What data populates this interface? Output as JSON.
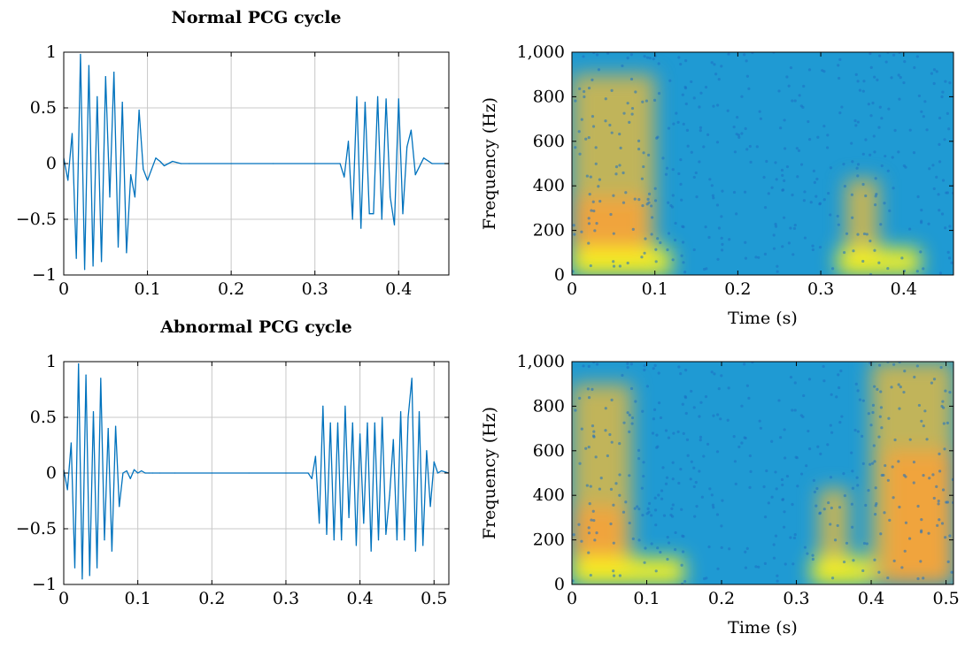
{
  "chart_data": [
    {
      "id": "normal-waveform",
      "type": "line",
      "title": "Normal PCG cycle",
      "xlabel": "",
      "ylabel": "",
      "xlim": [
        0,
        0.46
      ],
      "ylim": [
        -1,
        1
      ],
      "xticks": [
        0,
        0.1,
        0.2,
        0.3,
        0.4
      ],
      "xtick_labels": [
        "0",
        "0.1",
        "0.2",
        "0.3",
        "0.4"
      ],
      "yticks": [
        -1,
        -0.5,
        0,
        0.5,
        1
      ],
      "ytick_labels": [
        "−1",
        "−0.5",
        "0",
        "0.5",
        "1"
      ],
      "grid": true,
      "line_color": "#0072bd",
      "series": [
        {
          "x": [
            0,
            0.005,
            0.01,
            0.015,
            0.02,
            0.025,
            0.03,
            0.035,
            0.04,
            0.045,
            0.05,
            0.055,
            0.06,
            0.065,
            0.07,
            0.075,
            0.08,
            0.085,
            0.09,
            0.095,
            0.1,
            0.105,
            0.11,
            0.115,
            0.12,
            0.13,
            0.14,
            0.15,
            0.2,
            0.25,
            0.3,
            0.33,
            0.335,
            0.34,
            0.345,
            0.35,
            0.355,
            0.36,
            0.365,
            0.37,
            0.375,
            0.38,
            0.385,
            0.39,
            0.395,
            0.4,
            0.405,
            0.41,
            0.415,
            0.42,
            0.43,
            0.44,
            0.46
          ],
          "y": [
            0.05,
            -0.15,
            0.27,
            -0.85,
            0.98,
            -0.95,
            0.88,
            -0.92,
            0.6,
            -0.88,
            0.78,
            -0.3,
            0.82,
            -0.75,
            0.55,
            -0.8,
            -0.1,
            -0.3,
            0.48,
            -0.05,
            -0.15,
            -0.05,
            0.05,
            0.02,
            -0.02,
            0.02,
            0.0,
            0.0,
            0.0,
            0.0,
            0.0,
            0.0,
            -0.12,
            0.2,
            -0.5,
            0.6,
            -0.58,
            0.55,
            -0.45,
            -0.45,
            0.6,
            -0.5,
            0.58,
            -0.3,
            -0.55,
            0.58,
            -0.45,
            0.15,
            0.3,
            -0.1,
            0.05,
            0.0,
            0.0
          ]
        }
      ]
    },
    {
      "id": "normal-spectrogram",
      "type": "heatmap",
      "title": "",
      "xlabel": "Time (s)",
      "ylabel": "Frequency (Hz)",
      "xlim": [
        0,
        0.46
      ],
      "ylim": [
        0,
        1000
      ],
      "xticks": [
        0,
        0.1,
        0.2,
        0.3,
        0.4
      ],
      "xtick_labels": [
        "0",
        "0.1",
        "0.2",
        "0.3",
        "0.4"
      ],
      "yticks": [
        0,
        200,
        400,
        600,
        800,
        1000
      ],
      "ytick_labels": [
        "0",
        "200",
        "400",
        "600",
        "800",
        "1,000"
      ],
      "colors": {
        "background": "#1f9ad3",
        "mid": "#6cc07d",
        "high": "#f2a33b",
        "peak": "#f9f21a"
      },
      "hotspots": [
        {
          "t": [
            0.0,
            0.1
          ],
          "f": [
            0,
            900
          ],
          "level": 0.6
        },
        {
          "t": [
            0.0,
            0.09
          ],
          "f": [
            0,
            350
          ],
          "level": 0.85
        },
        {
          "t": [
            0.0,
            0.12
          ],
          "f": [
            0,
            120
          ],
          "level": 1.0
        },
        {
          "t": [
            0.33,
            0.37
          ],
          "f": [
            0,
            430
          ],
          "level": 0.55
        },
        {
          "t": [
            0.32,
            0.42
          ],
          "f": [
            0,
            120
          ],
          "level": 1.0
        }
      ]
    },
    {
      "id": "abnormal-waveform",
      "type": "line",
      "title": "Abnormal PCG cycle",
      "xlabel": "",
      "ylabel": "",
      "xlim": [
        0,
        0.52
      ],
      "ylim": [
        -1,
        1
      ],
      "xticks": [
        0,
        0.1,
        0.2,
        0.3,
        0.4,
        0.5
      ],
      "xtick_labels": [
        "0",
        "0.1",
        "0.2",
        "0.3",
        "0.4",
        "0.5"
      ],
      "yticks": [
        -1,
        -0.5,
        0,
        0.5,
        1
      ],
      "ytick_labels": [
        "−1",
        "−0.5",
        "0",
        "0.5",
        "1"
      ],
      "grid": true,
      "line_color": "#0072bd",
      "series": [
        {
          "x": [
            0,
            0.005,
            0.01,
            0.015,
            0.02,
            0.025,
            0.03,
            0.035,
            0.04,
            0.045,
            0.05,
            0.055,
            0.06,
            0.065,
            0.07,
            0.075,
            0.08,
            0.085,
            0.09,
            0.095,
            0.1,
            0.105,
            0.11,
            0.115,
            0.12,
            0.13,
            0.15,
            0.2,
            0.25,
            0.3,
            0.33,
            0.335,
            0.34,
            0.345,
            0.35,
            0.355,
            0.36,
            0.365,
            0.37,
            0.375,
            0.38,
            0.385,
            0.39,
            0.395,
            0.4,
            0.405,
            0.41,
            0.415,
            0.42,
            0.425,
            0.43,
            0.435,
            0.44,
            0.445,
            0.45,
            0.455,
            0.46,
            0.465,
            0.47,
            0.475,
            0.48,
            0.485,
            0.49,
            0.495,
            0.5,
            0.505,
            0.51,
            0.52
          ],
          "y": [
            0.03,
            -0.15,
            0.27,
            -0.85,
            0.98,
            -0.95,
            0.88,
            -0.92,
            0.55,
            -0.85,
            0.85,
            -0.6,
            0.4,
            -0.7,
            0.42,
            -0.3,
            0.0,
            0.02,
            -0.05,
            0.03,
            0.0,
            0.02,
            0.0,
            0.0,
            0.0,
            0.0,
            0.0,
            0.0,
            0.0,
            0.0,
            0.0,
            -0.05,
            0.15,
            -0.45,
            0.6,
            -0.55,
            0.45,
            -0.6,
            0.45,
            -0.6,
            0.6,
            -0.4,
            0.45,
            -0.65,
            0.35,
            -0.45,
            0.45,
            -0.7,
            0.45,
            -0.6,
            0.5,
            -0.55,
            -0.2,
            0.3,
            -0.6,
            0.55,
            -0.6,
            0.5,
            0.85,
            -0.7,
            0.55,
            -0.65,
            0.2,
            -0.3,
            0.1,
            0.0,
            0.02,
            0.0
          ]
        }
      ]
    },
    {
      "id": "abnormal-spectrogram",
      "type": "heatmap",
      "title": "",
      "xlabel": "Time (s)",
      "ylabel": "Frequency (Hz)",
      "xlim": [
        0,
        0.51
      ],
      "ylim": [
        0,
        1000
      ],
      "xticks": [
        0,
        0.1,
        0.2,
        0.3,
        0.4,
        0.5
      ],
      "xtick_labels": [
        "0",
        "0.1",
        "0.2",
        "0.3",
        "0.4",
        "0.5"
      ],
      "yticks": [
        0,
        200,
        400,
        600,
        800,
        1000
      ],
      "ytick_labels": [
        "0",
        "200",
        "400",
        "600",
        "800",
        "1,000"
      ],
      "colors": {
        "background": "#1f9ad3",
        "mid": "#6cc07d",
        "high": "#f2a33b",
        "peak": "#f9f21a"
      },
      "hotspots": [
        {
          "t": [
            0.0,
            0.08
          ],
          "f": [
            0,
            900
          ],
          "level": 0.55
        },
        {
          "t": [
            0.0,
            0.07
          ],
          "f": [
            0,
            350
          ],
          "level": 0.8
        },
        {
          "t": [
            0.0,
            0.15
          ],
          "f": [
            0,
            120
          ],
          "level": 1.0
        },
        {
          "t": [
            0.33,
            0.37
          ],
          "f": [
            0,
            430
          ],
          "level": 0.55
        },
        {
          "t": [
            0.32,
            0.4
          ],
          "f": [
            0,
            120
          ],
          "level": 1.0
        },
        {
          "t": [
            0.4,
            0.51
          ],
          "f": [
            0,
            1000
          ],
          "level": 0.6
        },
        {
          "t": [
            0.42,
            0.51
          ],
          "f": [
            0,
            600
          ],
          "level": 0.85
        }
      ]
    }
  ]
}
